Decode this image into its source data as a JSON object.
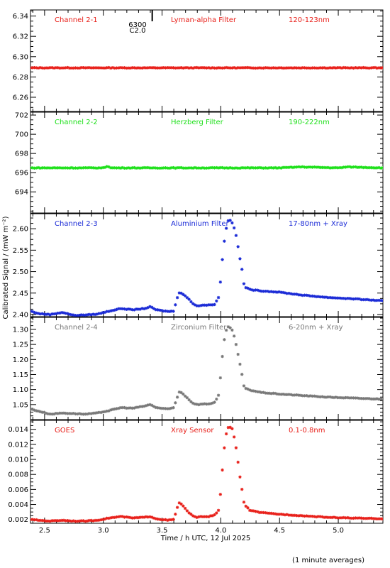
{
  "figure": {
    "ylabel": "Calibrated Signal / (mW m⁻²)",
    "xlabel": "Time / h UTC, 12 Jul 2025",
    "footnote": "(1 minute averages)",
    "marker": {
      "code": "6300",
      "label": "C2.0",
      "x": 3.38
    }
  },
  "chart_data": [
    {
      "type": "scatter",
      "channel": "Channel 2-1",
      "filter": "Lyman-alpha Filter",
      "band": "120-123nm",
      "color": "#e8201a",
      "xlim": [
        2.38,
        5.38
      ],
      "ylim": [
        6.246,
        6.346
      ],
      "yticks": [
        6.26,
        6.28,
        6.3,
        6.32,
        6.34
      ],
      "ytick_labels": [
        "6.26",
        "6.28",
        "6.30",
        "6.32",
        "6.34"
      ],
      "x": [
        2.38,
        2.5,
        3.0,
        3.5,
        4.0,
        4.5,
        5.0,
        5.38
      ],
      "y": [
        6.289,
        6.289,
        6.289,
        6.289,
        6.289,
        6.289,
        6.289,
        6.289
      ]
    },
    {
      "type": "scatter",
      "channel": "Channel 2-2",
      "filter": "Herzberg Filter",
      "band": "190-222nm",
      "color": "#1ee01a",
      "xlim": [
        2.38,
        5.38
      ],
      "ylim": [
        691.8,
        702.3
      ],
      "yticks": [
        694,
        696,
        698,
        700,
        702
      ],
      "ytick_labels": [
        "694",
        "696",
        "698",
        "700",
        "702"
      ],
      "x": [
        2.38,
        2.5,
        3.0,
        3.04,
        3.06,
        3.5,
        4.0,
        4.5,
        4.68,
        5.0,
        5.08,
        5.38
      ],
      "y": [
        696.5,
        696.5,
        696.5,
        696.7,
        696.5,
        696.5,
        696.5,
        696.5,
        696.6,
        696.5,
        696.6,
        696.5
      ]
    },
    {
      "type": "scatter",
      "channel": "Channel 2-3",
      "filter": "Aluminium Filter",
      "band": "17-80nm + Xray",
      "color": "#1a2ad6",
      "xlim": [
        2.38,
        5.38
      ],
      "ylim": [
        2.395,
        2.635
      ],
      "yticks": [
        2.4,
        2.45,
        2.5,
        2.55,
        2.6
      ],
      "ytick_labels": [
        "2.40",
        "2.45",
        "2.50",
        "2.55",
        "2.60"
      ],
      "x": [
        2.38,
        2.45,
        2.55,
        2.65,
        2.75,
        2.85,
        2.95,
        3.05,
        3.15,
        3.25,
        3.35,
        3.4,
        3.45,
        3.55,
        3.6,
        3.63,
        3.65,
        3.68,
        3.72,
        3.76,
        3.8,
        3.85,
        3.9,
        3.95,
        3.98,
        4.0,
        4.02,
        4.04,
        4.06,
        4.08,
        4.1,
        4.12,
        4.14,
        4.16,
        4.18,
        4.2,
        4.25,
        4.35,
        4.5,
        4.7,
        4.9,
        5.1,
        5.38
      ],
      "y": [
        2.408,
        2.402,
        2.4,
        2.405,
        2.398,
        2.399,
        2.401,
        2.408,
        2.414,
        2.411,
        2.414,
        2.418,
        2.411,
        2.407,
        2.408,
        2.44,
        2.453,
        2.447,
        2.438,
        2.426,
        2.42,
        2.422,
        2.422,
        2.424,
        2.44,
        2.483,
        2.55,
        2.593,
        2.618,
        2.62,
        2.613,
        2.597,
        2.57,
        2.535,
        2.505,
        2.465,
        2.458,
        2.455,
        2.452,
        2.445,
        2.44,
        2.437,
        2.432
      ]
    },
    {
      "type": "scatter",
      "channel": "Channel 2-4",
      "filter": "Zirconium Filter",
      "band": "6-20nm + Xray",
      "color": "#787878",
      "xlim": [
        2.38,
        5.38
      ],
      "ylim": [
        1.0,
        1.34
      ],
      "yticks": [
        1.05,
        1.1,
        1.15,
        1.2,
        1.25,
        1.3
      ],
      "ytick_labels": [
        "1.05",
        "1.10",
        "1.15",
        "1.20",
        "1.25",
        "1.30"
      ],
      "x": [
        2.38,
        2.45,
        2.55,
        2.65,
        2.75,
        2.85,
        2.95,
        3.05,
        3.15,
        3.25,
        3.35,
        3.4,
        3.45,
        3.55,
        3.6,
        3.63,
        3.65,
        3.68,
        3.72,
        3.76,
        3.8,
        3.85,
        3.9,
        3.95,
        3.98,
        4.0,
        4.02,
        4.04,
        4.06,
        4.08,
        4.1,
        4.12,
        4.14,
        4.16,
        4.18,
        4.2,
        4.25,
        4.35,
        4.5,
        4.7,
        4.9,
        5.1,
        5.38
      ],
      "y": [
        1.035,
        1.028,
        1.018,
        1.022,
        1.02,
        1.018,
        1.022,
        1.03,
        1.04,
        1.038,
        1.045,
        1.05,
        1.04,
        1.035,
        1.04,
        1.075,
        1.095,
        1.085,
        1.07,
        1.055,
        1.05,
        1.052,
        1.052,
        1.058,
        1.08,
        1.15,
        1.24,
        1.29,
        1.31,
        1.305,
        1.295,
        1.27,
        1.23,
        1.19,
        1.15,
        1.105,
        1.098,
        1.09,
        1.085,
        1.08,
        1.075,
        1.072,
        1.068
      ]
    },
    {
      "type": "scatter",
      "channel": "GOES",
      "filter": "Xray Sensor",
      "band": "0.1-0.8nm",
      "color": "#e8201a",
      "xlim": [
        2.38,
        5.38
      ],
      "ylim": [
        0.0015,
        0.0152
      ],
      "yticks": [
        0.002,
        0.004,
        0.006,
        0.008,
        0.01,
        0.012,
        0.014
      ],
      "ytick_labels": [
        "0.002",
        "0.004",
        "0.006",
        "0.008",
        "0.010",
        "0.012",
        "0.014"
      ],
      "x": [
        2.38,
        2.45,
        2.55,
        2.65,
        2.75,
        2.85,
        2.95,
        3.05,
        3.15,
        3.25,
        3.35,
        3.4,
        3.45,
        3.55,
        3.6,
        3.63,
        3.65,
        3.68,
        3.72,
        3.76,
        3.8,
        3.85,
        3.9,
        3.95,
        3.98,
        4.0,
        4.02,
        4.04,
        4.06,
        4.08,
        4.1,
        4.12,
        4.14,
        4.16,
        4.18,
        4.2,
        4.25,
        4.35,
        4.5,
        4.7,
        4.9,
        5.1,
        5.38
      ],
      "y": [
        0.002,
        0.0019,
        0.0018,
        0.0019,
        0.0018,
        0.0018,
        0.0019,
        0.0022,
        0.0024,
        0.0022,
        0.0023,
        0.0024,
        0.0021,
        0.0019,
        0.002,
        0.0036,
        0.0043,
        0.0038,
        0.003,
        0.0025,
        0.0023,
        0.0024,
        0.0024,
        0.0026,
        0.0032,
        0.0058,
        0.01,
        0.013,
        0.0142,
        0.0143,
        0.014,
        0.0125,
        0.0105,
        0.008,
        0.006,
        0.004,
        0.0032,
        0.0029,
        0.0027,
        0.0025,
        0.0023,
        0.0022,
        0.0021
      ]
    }
  ],
  "xaxis": {
    "ticks": [
      2.5,
      3.0,
      3.5,
      4.0,
      4.5,
      5.0
    ],
    "tick_labels": [
      "2.5",
      "3.0",
      "3.5",
      "4.0",
      "4.5",
      "5.0"
    ]
  }
}
